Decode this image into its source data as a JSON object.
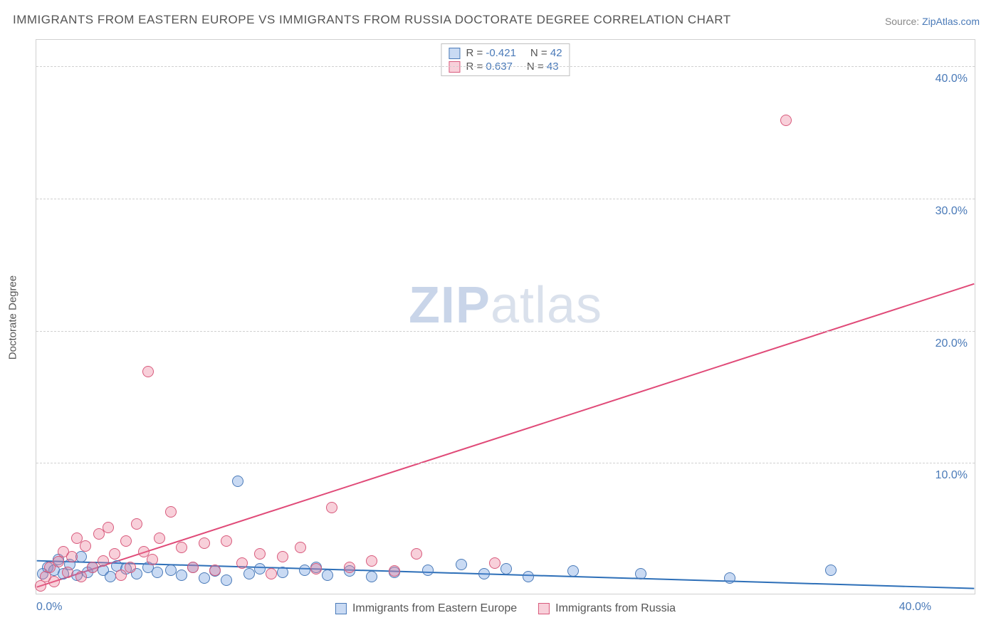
{
  "title": "IMMIGRANTS FROM EASTERN EUROPE VS IMMIGRANTS FROM RUSSIA DOCTORATE DEGREE CORRELATION CHART",
  "source_label": "Source:",
  "source_value": "ZipAtlas.com",
  "yaxis_label": "Doctorate Degree",
  "watermark": {
    "bold": "ZIP",
    "rest": "atlas"
  },
  "chart": {
    "type": "scatter",
    "background_color": "#ffffff",
    "border_color": "#d0d0d0",
    "grid_color": "#d0d0d0",
    "grid_style": "dashed",
    "title_fontsize": 17,
    "title_color": "#555555",
    "label_fontsize": 15,
    "tick_fontsize": 16,
    "tick_color": "#4a7ab8",
    "xlim": [
      0,
      42
    ],
    "ylim": [
      0,
      42
    ],
    "yticks": [
      10,
      20,
      30,
      40
    ],
    "ytick_labels": [
      "10.0%",
      "20.0%",
      "30.0%",
      "40.0%"
    ],
    "xticks": [
      0,
      40
    ],
    "xtick_labels": [
      "0.0%",
      "40.0%"
    ],
    "marker_radius": 8,
    "marker_opacity": 0.45,
    "line_width": 2
  },
  "series": [
    {
      "name": "Immigrants from Eastern Europe",
      "color_fill": "rgba(100,150,220,0.35)",
      "color_stroke": "#4a7ab8",
      "trend_color": "#2d6fb8",
      "r": "-0.421",
      "n": "42",
      "trend": {
        "x1": 0,
        "y1": 2.5,
        "x2": 42,
        "y2": 0.4
      },
      "points": [
        [
          0.3,
          1.5
        ],
        [
          0.5,
          2.0
        ],
        [
          0.8,
          1.8
        ],
        [
          1.0,
          2.6
        ],
        [
          1.2,
          1.5
        ],
        [
          1.5,
          2.2
        ],
        [
          1.8,
          1.4
        ],
        [
          2.0,
          2.8
        ],
        [
          2.3,
          1.6
        ],
        [
          2.5,
          2.0
        ],
        [
          3.0,
          1.8
        ],
        [
          3.3,
          1.3
        ],
        [
          3.6,
          2.1
        ],
        [
          4.0,
          1.9
        ],
        [
          4.5,
          1.5
        ],
        [
          5.0,
          2.0
        ],
        [
          5.4,
          1.6
        ],
        [
          6.0,
          1.8
        ],
        [
          6.5,
          1.4
        ],
        [
          7.0,
          2.0
        ],
        [
          7.5,
          1.2
        ],
        [
          8.0,
          1.7
        ],
        [
          8.5,
          1.0
        ],
        [
          9.0,
          8.5
        ],
        [
          9.5,
          1.5
        ],
        [
          10.0,
          1.9
        ],
        [
          11.0,
          1.6
        ],
        [
          12.0,
          1.8
        ],
        [
          12.5,
          2.0
        ],
        [
          13.0,
          1.4
        ],
        [
          14.0,
          1.7
        ],
        [
          15.0,
          1.3
        ],
        [
          16.0,
          1.6
        ],
        [
          17.5,
          1.8
        ],
        [
          19.0,
          2.2
        ],
        [
          20.0,
          1.5
        ],
        [
          21.0,
          1.9
        ],
        [
          22.0,
          1.3
        ],
        [
          24.0,
          1.7
        ],
        [
          27.0,
          1.5
        ],
        [
          31.0,
          1.2
        ],
        [
          35.5,
          1.8
        ]
      ]
    },
    {
      "name": "Immigrants from Russia",
      "color_fill": "rgba(235,120,150,0.35)",
      "color_stroke": "#d85a7c",
      "trend_color": "#e04a78",
      "r": "0.637",
      "n": "43",
      "trend": {
        "x1": 0,
        "y1": 0.5,
        "x2": 42,
        "y2": 23.5
      },
      "points": [
        [
          0.2,
          0.6
        ],
        [
          0.4,
          1.3
        ],
        [
          0.6,
          2.0
        ],
        [
          0.8,
          0.9
        ],
        [
          1.0,
          2.4
        ],
        [
          1.2,
          3.2
        ],
        [
          1.4,
          1.6
        ],
        [
          1.6,
          2.8
        ],
        [
          1.8,
          4.2
        ],
        [
          2.0,
          1.3
        ],
        [
          2.2,
          3.6
        ],
        [
          2.5,
          2.0
        ],
        [
          2.8,
          4.5
        ],
        [
          3.0,
          2.5
        ],
        [
          3.2,
          5.0
        ],
        [
          3.5,
          3.0
        ],
        [
          3.8,
          1.4
        ],
        [
          4.0,
          4.0
        ],
        [
          4.2,
          2.0
        ],
        [
          4.5,
          5.3
        ],
        [
          4.8,
          3.2
        ],
        [
          5.0,
          16.8
        ],
        [
          5.2,
          2.6
        ],
        [
          5.5,
          4.2
        ],
        [
          6.0,
          6.2
        ],
        [
          6.5,
          3.5
        ],
        [
          7.0,
          2.0
        ],
        [
          7.5,
          3.8
        ],
        [
          8.0,
          1.8
        ],
        [
          8.5,
          4.0
        ],
        [
          9.2,
          2.3
        ],
        [
          10.0,
          3.0
        ],
        [
          10.5,
          1.5
        ],
        [
          11.0,
          2.8
        ],
        [
          11.8,
          3.5
        ],
        [
          12.5,
          1.9
        ],
        [
          13.2,
          6.5
        ],
        [
          14.0,
          2.0
        ],
        [
          15.0,
          2.5
        ],
        [
          16.0,
          1.7
        ],
        [
          17.0,
          3.0
        ],
        [
          20.5,
          2.3
        ],
        [
          33.5,
          35.8
        ]
      ]
    }
  ],
  "legend_top": {
    "r_label": "R =",
    "n_label": "N ="
  },
  "legend_bottom_labels": [
    "Immigrants from Eastern Europe",
    "Immigrants from Russia"
  ]
}
